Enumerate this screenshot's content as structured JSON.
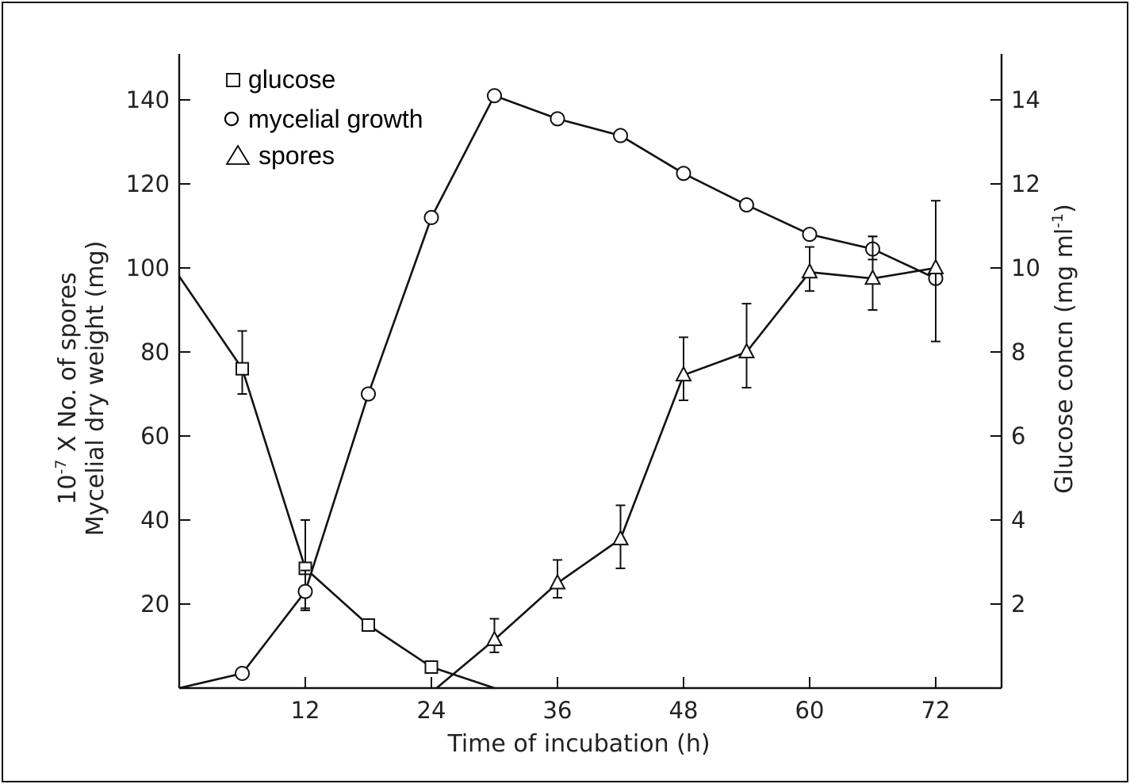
{
  "chart_data": {
    "type": "line",
    "title": "",
    "xlabel": "Time of incubation (h)",
    "ylabel_left_line1": "10",
    "ylabel_left_sup": "-7",
    "ylabel_left_line1_rest": " X No. of spores",
    "ylabel_left_line2": "Mycelial dry weight (mg)",
    "ylabel_right_main": "Glucose concn (mg ml",
    "ylabel_right_sup": "-1",
    "ylabel_right_close": ")",
    "xlim": [
      0,
      78
    ],
    "ylim_left": [
      0,
      150
    ],
    "ylim_right": [
      0,
      15
    ],
    "xticks": [
      12,
      24,
      36,
      48,
      60,
      72
    ],
    "xtick_labels": [
      "12",
      "24",
      "36",
      "48",
      "60",
      "72"
    ],
    "yticks_left": [
      20,
      40,
      60,
      80,
      100,
      120,
      140
    ],
    "ytick_labels_left": [
      "20",
      "40",
      "60",
      "80",
      "100",
      "120",
      "140"
    ],
    "yticks_right": [
      2,
      4,
      6,
      8,
      10,
      12,
      14
    ],
    "ytick_labels_right": [
      "2",
      "4",
      "6",
      "8",
      "10",
      "12",
      "14"
    ],
    "legend": [
      {
        "symbol": "□",
        "label": "glucose",
        "series": "glucose"
      },
      {
        "symbol": "○",
        "label": "mycelial growth",
        "series": "mycelial"
      },
      {
        "symbol": "△",
        "label": "spores",
        "series": "spores"
      }
    ],
    "legend_position": "top-left",
    "series": [
      {
        "name": "glucose",
        "axis": "right",
        "marker": "square",
        "x": [
          0,
          6,
          12,
          18,
          24,
          30
        ],
        "y": [
          9.8,
          7.6,
          2.85,
          1.5,
          0.5,
          0
        ],
        "marker_shown": [
          false,
          true,
          true,
          true,
          true,
          false
        ],
        "err_low": [
          null,
          7.0,
          1.9,
          null,
          null,
          null
        ],
        "err_high": [
          null,
          8.5,
          4.0,
          null,
          null,
          null
        ]
      },
      {
        "name": "mycelial growth",
        "axis": "left",
        "marker": "circle",
        "x": [
          0,
          6,
          12,
          18,
          24,
          30,
          36,
          42,
          48,
          54,
          60,
          66,
          72
        ],
        "y": [
          0,
          3.5,
          23,
          70,
          112,
          141,
          135.5,
          131.5,
          122.5,
          115,
          108,
          104.5,
          97.5
        ],
        "marker_shown": [
          false,
          true,
          true,
          true,
          true,
          true,
          true,
          true,
          true,
          true,
          true,
          true,
          true
        ],
        "err_low": [
          null,
          null,
          18.5,
          null,
          null,
          null,
          null,
          null,
          null,
          null,
          null,
          102,
          null
        ],
        "err_high": [
          null,
          null,
          28,
          null,
          null,
          null,
          null,
          null,
          null,
          null,
          null,
          107.5,
          null
        ]
      },
      {
        "name": "spores",
        "axis": "left",
        "marker": "triangle",
        "x": [
          24.5,
          30,
          36,
          42,
          48,
          54,
          60,
          66,
          72
        ],
        "y": [
          0,
          11.5,
          25,
          35.5,
          74.5,
          80,
          99,
          97.5,
          100
        ],
        "marker_shown": [
          false,
          true,
          true,
          true,
          true,
          true,
          true,
          true,
          true
        ],
        "err_low": [
          null,
          8.5,
          21.5,
          28.5,
          68.5,
          71.5,
          94.5,
          90,
          82.5
        ],
        "err_high": [
          null,
          16.5,
          30.5,
          43.5,
          83.5,
          91.5,
          105,
          107.5,
          116
        ]
      }
    ]
  }
}
